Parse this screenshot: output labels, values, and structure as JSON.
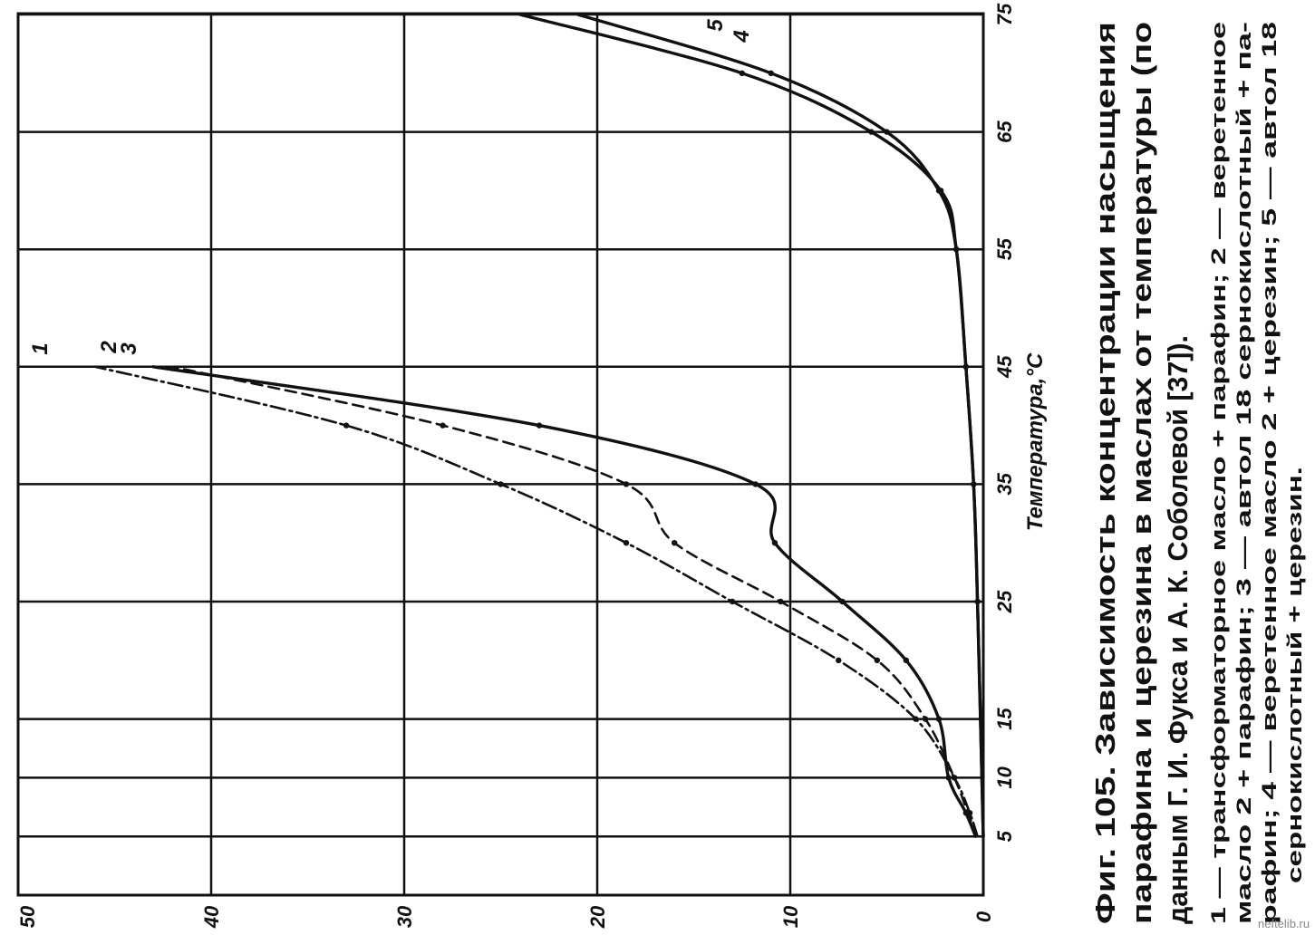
{
  "chart_data": {
    "type": "line",
    "title": "Фиг. 105. Зависимость концентрации насыщения парафина и церезина в маслах от температуры (по данным Г. И. Фукса и А. К. Соболевой [37]).",
    "xlabel": "Температура,°С",
    "ylabel": "",
    "x_ticks": [
      "5",
      "10",
      "15",
      "25",
      "35",
      "45",
      "55",
      "65",
      "75"
    ],
    "y_ticks": [
      "0",
      "10",
      "20",
      "30",
      "40",
      "50"
    ],
    "xlim": [
      0,
      75
    ],
    "ylim": [
      0,
      50
    ],
    "grid": true,
    "series": [
      {
        "name": "1",
        "style": "dash-dot",
        "x": [
          5,
          7,
          10,
          15,
          20,
          25,
          30,
          35,
          40,
          45
        ],
        "y": [
          0.3,
          0.7,
          1.5,
          3.5,
          7.5,
          13.0,
          18.5,
          25.0,
          33.0,
          46.0
        ]
      },
      {
        "name": "2",
        "style": "solid",
        "x": [
          5,
          7,
          10,
          15,
          20,
          25,
          30,
          35,
          40,
          45
        ],
        "y": [
          0.4,
          0.9,
          1.8,
          2.3,
          4.0,
          7.3,
          10.8,
          11.8,
          23.0,
          43.0
        ]
      },
      {
        "name": "3",
        "style": "dashed",
        "x": [
          5,
          7,
          10,
          15,
          20,
          25,
          30,
          35,
          40,
          45
        ],
        "y": [
          0.3,
          0.8,
          1.5,
          3.0,
          5.5,
          10.5,
          16.0,
          18.5,
          28.0,
          42.0
        ]
      },
      {
        "name": "4",
        "style": "solid",
        "x": [
          5,
          25,
          35,
          45,
          55,
          60,
          65,
          70,
          75
        ],
        "y": [
          0.0,
          0.3,
          0.5,
          0.9,
          1.4,
          2.3,
          5.0,
          11.0,
          21.0
        ]
      },
      {
        "name": "5",
        "style": "solid",
        "x": [
          5,
          25,
          35,
          45,
          55,
          60,
          65,
          70,
          75
        ],
        "y": [
          0.0,
          0.3,
          0.5,
          0.9,
          1.4,
          2.2,
          5.8,
          12.5,
          24.0
        ]
      }
    ],
    "series_labels": [
      "1",
      "2",
      "3",
      "4",
      "5"
    ],
    "caption_lines": [
      "Фиг. 105. Зависимость концентрации насыщения",
      "парафина и церезина в маслах от температуры (по",
      "данным Г. И. Фукса и А. К. Соболевой [37])."
    ],
    "legend_lines": [
      "1 — трансформаторное масло + парафин; 2 — веретенное",
      "масло 2 + парафин; 3 — автол 18 сернокислотный + па-",
      "рафин; 4 — веретенное масло 2 + церезин; 5 — автол 18",
      "сернокислотный + церезин."
    ]
  },
  "watermark": "neftelib.ru"
}
